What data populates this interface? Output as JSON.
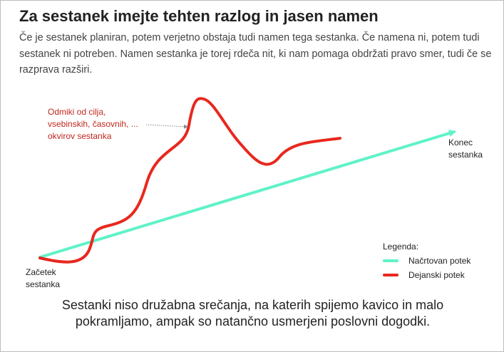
{
  "heading": "Za sestanek imejte tehten razlog in jasen namen",
  "intro": "Če je sestanek planiran, potem verjetno obstaja tudi namen tega sestanka. Če namena ni, potem tudi sestanek ni potreben. Namen sestanka je torej rdeča nit, ki nam pomaga obdržati pravo smer, tudi če se razprava razširi.",
  "diagram": {
    "annotation_lines": [
      "Odmiki od cilja,",
      "vsebinskih, časovnih, ...",
      "okvirov sestanka"
    ],
    "start_label_lines": [
      "Začetek",
      "sestanka"
    ],
    "end_label_lines": [
      "Konec",
      "sestanka"
    ],
    "legend": {
      "title": "Legenda:",
      "items": [
        {
          "label": "Načrtovan potek",
          "color": "#5ff2c8"
        },
        {
          "label": "Dejanski potek",
          "color": "#e8281e"
        }
      ]
    },
    "colors": {
      "annotation_text": "#c0281e",
      "planned": "#5ff2c8",
      "actual": "#e8281e"
    }
  },
  "caption": "Sestanki niso družabna srečanja, na katerih spijemo kavico in malo pokramljamo, ampak so natančno usmerjeni poslovni dogodki."
}
